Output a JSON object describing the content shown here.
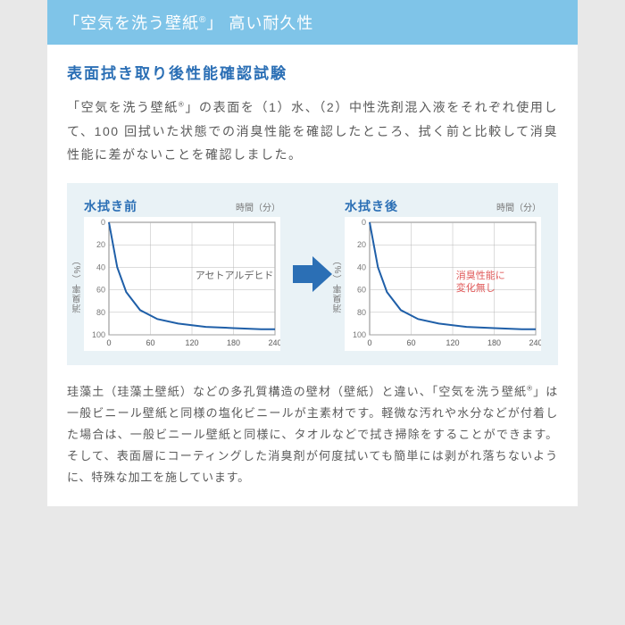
{
  "banner": {
    "text_pre": "「空気を洗う壁紙",
    "reg": "®",
    "text_post": "」 高い耐久性",
    "bg": "#7fc4e8",
    "fg": "#ffffff"
  },
  "heading": {
    "text": "表面拭き取り後性能確認試験",
    "color": "#2b6fb5"
  },
  "intro": {
    "text_a": "「空気を洗う壁紙",
    "reg": "®",
    "text_b": "」の表面を（1）水、（2）中性洗剤混入液をそれぞれ使用して、100 回拭いた状態での消臭性能を確認したところ、拭く前と比較して消臭性能に差がないことを確認しました。"
  },
  "charts": {
    "bg": "#e9f2f6",
    "x_label": "時間（分）",
    "y_label": "消臭率（%）",
    "x_ticks": [
      "0",
      "60",
      "120",
      "180",
      "240"
    ],
    "y_ticks": [
      "0",
      "20",
      "40",
      "60",
      "80",
      "100"
    ],
    "grid_color": "#b8b8b8",
    "curve_color": "#1f5fa8",
    "curve_points": [
      [
        0,
        0
      ],
      [
        12,
        40
      ],
      [
        25,
        62
      ],
      [
        45,
        78
      ],
      [
        70,
        86
      ],
      [
        100,
        90
      ],
      [
        140,
        93
      ],
      [
        180,
        94
      ],
      [
        220,
        95
      ],
      [
        240,
        95
      ]
    ],
    "before": {
      "title": "水拭き前",
      "annot": "アセトアルデヒド",
      "annot_color": "#666666"
    },
    "after": {
      "title": "水拭き後",
      "annot1": "消臭性能に",
      "annot2": "変化無し",
      "annot_color": "#e05a5a"
    },
    "arrow_color": "#2b6fb5"
  },
  "footer": {
    "text_a": "珪藻土（珪藻土壁紙）などの多孔質構造の壁材（壁紙）と違い、「空気を洗う壁紙",
    "reg": "®",
    "text_b": "」は一般ビニール壁紙と同様の塩化ビニールが主素材です。軽微な汚れや水分などが付着した場合は、一般ビニール壁紙と同様に、タオルなどで拭き掃除をすることができます。そして、表面層にコーティングした消臭剤が何度拭いても簡単には剥がれ落ちないように、特殊な加工を施しています。"
  }
}
